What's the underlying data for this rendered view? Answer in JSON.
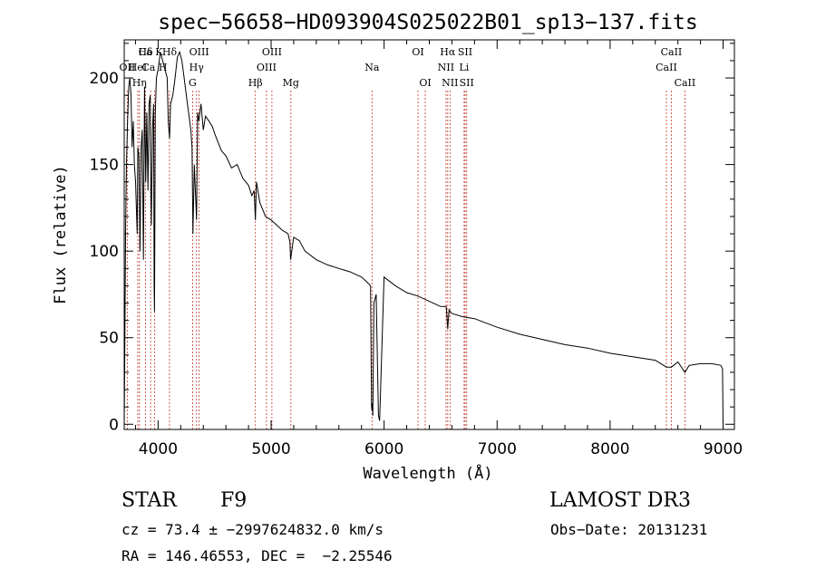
{
  "chart_data": {
    "type": "line",
    "title": "spec−56658−HD093904S025022B01_sp13−137.fits",
    "xlabel": "Wavelength (Å)",
    "ylabel": "Flux (relative)",
    "xlim": [
      3700,
      9100
    ],
    "ylim": [
      -3,
      222
    ],
    "xticks": [
      4000,
      5000,
      6000,
      7000,
      8000,
      9000
    ],
    "yticks": [
      0,
      50,
      100,
      150,
      200
    ],
    "series": [
      {
        "name": "flux",
        "x": [
          3700,
          3705,
          3712,
          3720,
          3730,
          3740,
          3750,
          3760,
          3770,
          3780,
          3790,
          3800,
          3815,
          3820,
          3830,
          3840,
          3850,
          3860,
          3870,
          3880,
          3890,
          3900,
          3910,
          3920,
          3930,
          3935,
          3940,
          3950,
          3960,
          3965,
          3968,
          3975,
          3985,
          4000,
          4020,
          4040,
          4060,
          4080,
          4090,
          4101,
          4110,
          4130,
          4150,
          4170,
          4190,
          4210,
          4230,
          4250,
          4270,
          4290,
          4300,
          4308,
          4320,
          4340,
          4350,
          4360,
          4380,
          4400,
          4420,
          4450,
          4480,
          4500,
          4530,
          4560,
          4600,
          4650,
          4700,
          4750,
          4800,
          4830,
          4850,
          4861,
          4870,
          4900,
          4950,
          5000,
          5050,
          5100,
          5150,
          5167,
          5172,
          5183,
          5200,
          5250,
          5300,
          5400,
          5500,
          5600,
          5700,
          5800,
          5850,
          5880,
          5889,
          5893,
          5896,
          5900,
          5910,
          5930,
          5950,
          5960,
          6000,
          6100,
          6200,
          6300,
          6400,
          6500,
          6550,
          6563,
          6575,
          6600,
          6700,
          6800,
          7000,
          7200,
          7400,
          7600,
          7800,
          8000,
          8200,
          8400,
          8498,
          8542,
          8600,
          8662,
          8700,
          8800,
          8900,
          8980,
          8995,
          9000
        ],
        "y": [
          0,
          40,
          110,
          150,
          175,
          195,
          200,
          190,
          160,
          175,
          150,
          140,
          110,
          160,
          155,
          100,
          160,
          170,
          95,
          195,
          140,
          180,
          135,
          185,
          190,
          140,
          115,
          170,
          185,
          80,
          65,
          180,
          200,
          205,
          215,
          210,
          205,
          200,
          175,
          165,
          185,
          190,
          200,
          212,
          215,
          210,
          200,
          190,
          180,
          170,
          160,
          110,
          150,
          118,
          180,
          175,
          185,
          170,
          178,
          175,
          172,
          168,
          163,
          158,
          155,
          148,
          150,
          142,
          138,
          132,
          135,
          118,
          140,
          128,
          120,
          118,
          115,
          112,
          110,
          105,
          95,
          100,
          108,
          106,
          100,
          95,
          92,
          90,
          88,
          85,
          82,
          80,
          10,
          8,
          12,
          5,
          70,
          75,
          5,
          2,
          85,
          80,
          76,
          74,
          71,
          68,
          68,
          55,
          66,
          64,
          62,
          61,
          56,
          52,
          49,
          46,
          44,
          41,
          39,
          37,
          33,
          33,
          36,
          30,
          34,
          35,
          35,
          34,
          32,
          0
        ]
      }
    ],
    "lines": [
      {
        "name": "Hδ",
        "x": 4101,
        "row": 0
      },
      {
        "name": "Ca K",
        "x": 3934,
        "row": 0
      },
      {
        "name": "Hδ",
        "x": 3889,
        "row": 0
      },
      {
        "name": "OII",
        "x": 3727,
        "row": 1
      },
      {
        "name": "HeI",
        "x": 3820,
        "row": 1
      },
      {
        "name": "Ca H",
        "x": 3968,
        "row": 1
      },
      {
        "name": "Hη",
        "x": 3835,
        "row": 2
      },
      {
        "name": "OIII",
        "x": 4363,
        "row": 0
      },
      {
        "name": "Hγ",
        "x": 4340,
        "row": 1
      },
      {
        "name": "G",
        "x": 4305,
        "row": 2
      },
      {
        "name": "Hβ",
        "x": 4861,
        "row": 2
      },
      {
        "name": "OIII",
        "x": 5007,
        "row": 0
      },
      {
        "name": "OIII",
        "x": 4959,
        "row": 1
      },
      {
        "name": "Mg",
        "x": 5175,
        "row": 2
      },
      {
        "name": "Na",
        "x": 5893,
        "row": 1
      },
      {
        "name": "OI",
        "x": 6300,
        "row": 0
      },
      {
        "name": "OI",
        "x": 6364,
        "row": 2
      },
      {
        "name": "Hα",
        "x": 6563,
        "row": 0
      },
      {
        "name": "SII",
        "x": 6717,
        "row": 0
      },
      {
        "name": "NII",
        "x": 6548,
        "row": 1
      },
      {
        "name": "Li",
        "x": 6708,
        "row": 1
      },
      {
        "name": "NII",
        "x": 6583,
        "row": 2
      },
      {
        "name": "SII",
        "x": 6731,
        "row": 2
      },
      {
        "name": "CaII",
        "x": 8542,
        "row": 0
      },
      {
        "name": "CaII",
        "x": 8498,
        "row": 1
      },
      {
        "name": "CaII",
        "x": 8662,
        "row": 2
      }
    ]
  },
  "info": {
    "object_type": "STAR",
    "subclass": "F9",
    "survey": "LAMOST DR3",
    "cz": "cz = 73.4 ± −2997624832.0 km/s",
    "obs_date": "Obs−Date: 20131231",
    "coords": "RA = 146.46553, DEC =  −2.25546"
  },
  "colors": {
    "spectrum": "#000000",
    "marker_line": "#c0392b",
    "background": "#ffffff"
  }
}
